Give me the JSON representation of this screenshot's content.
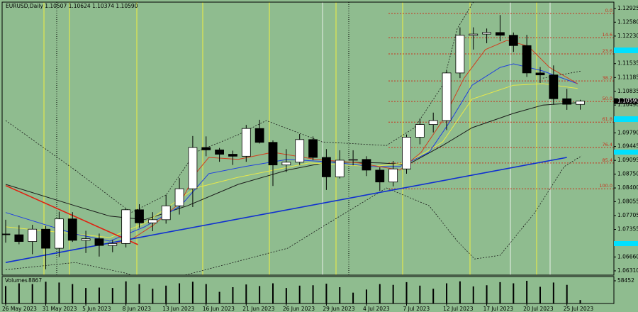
{
  "chart_data": {
    "type": "candlestick",
    "header": "EURUSD,Daily  1.10507 1.10624 1.10374 1.10590",
    "categories": [
      "26 May 2023",
      null,
      null,
      "31 May 2023",
      null,
      null,
      "5 Jun 2023",
      null,
      null,
      "8 Jun 2023",
      null,
      null,
      "13 Jun 2023",
      null,
      null,
      "16 Jun 2023",
      null,
      null,
      "21 Jun 2023",
      null,
      null,
      "26 Jun 2023",
      null,
      null,
      "29 Jun 2023",
      null,
      null,
      "4 Jul 2023",
      null,
      null,
      "7 Jul 2023",
      null,
      null,
      "12 Jul 2023",
      null,
      null,
      "17 Jul 2023",
      null,
      null,
      "20 Jul 2023",
      null,
      null,
      "25 Jul 2023",
      null
    ],
    "open": [
      1.0724,
      1.0722,
      1.0705,
      1.0736,
      1.0688,
      1.0762,
      1.0708,
      1.0712,
      1.0695,
      1.07,
      1.0785,
      1.0752,
      1.076,
      1.0795,
      1.0838,
      1.0942,
      1.0936,
      1.0925,
      1.092,
      1.099,
      1.0955,
      1.0898,
      1.0905,
      1.0962,
      1.0917,
      1.0868,
      1.091,
      1.0912,
      1.0885,
      1.0855,
      1.0888,
      1.0968,
      1.1,
      1.101,
      1.113,
      1.1225,
      1.1228,
      1.1232,
      1.1225,
      1.1199,
      1.113,
      1.1125,
      1.1065,
      1.10507
    ],
    "high": [
      1.076,
      1.0746,
      1.0747,
      1.0744,
      1.078,
      1.0779,
      1.0732,
      1.0725,
      1.0709,
      1.0788,
      1.0799,
      1.0779,
      1.0823,
      1.0865,
      1.0971,
      1.097,
      1.0941,
      1.0934,
      1.0999,
      1.1012,
      1.096,
      1.0938,
      1.0976,
      1.097,
      1.0938,
      1.0935,
      1.0935,
      1.092,
      1.0892,
      1.0908,
      1.0975,
      1.1015,
      1.103,
      1.1136,
      1.1245,
      1.1245,
      1.1242,
      1.1276,
      1.1232,
      1.1226,
      1.1145,
      1.1149,
      1.109,
      1.10624
    ],
    "low": [
      1.0702,
      1.0698,
      1.0673,
      1.0635,
      1.0666,
      1.0704,
      1.0676,
      1.0667,
      1.0678,
      1.069,
      1.074,
      1.0731,
      1.075,
      1.0773,
      1.0792,
      1.092,
      1.0906,
      1.0898,
      1.0906,
      1.0952,
      1.0845,
      1.088,
      1.0898,
      1.091,
      1.0835,
      1.0864,
      1.0897,
      1.087,
      1.0833,
      1.0844,
      1.0876,
      1.095,
      1.098,
      1.0986,
      1.1117,
      1.1189,
      1.1205,
      1.121,
      1.1183,
      1.112,
      1.1105,
      1.105,
      1.1037,
      1.10374
    ],
    "close": [
      1.0722,
      1.0705,
      1.0736,
      1.0688,
      1.0762,
      1.0708,
      1.0712,
      1.0695,
      1.07,
      1.0785,
      1.0752,
      1.076,
      1.0795,
      1.0838,
      1.0942,
      1.0936,
      1.0925,
      1.092,
      1.099,
      1.0955,
      1.0898,
      1.0905,
      1.0962,
      1.0917,
      1.0868,
      1.091,
      1.0912,
      1.0885,
      1.0855,
      1.0888,
      1.0968,
      1.1,
      1.101,
      1.113,
      1.1225,
      1.1228,
      1.1232,
      1.1225,
      1.1199,
      1.113,
      1.1125,
      1.1065,
      1.1051,
      1.1059
    ],
    "up_color": "#ffffff",
    "down_color": "#000000",
    "ylim": [
      1.06202,
      1.13086
    ],
    "yticks": [
      1.12925,
      {
        "value": 1.1258,
        "label": "1.12580"
      },
      {
        "value": 1.1223,
        "label": "1.12230"
      },
      1.11535,
      1.11185,
      1.10835,
      {
        "value": 1.1049,
        "label": "1.10490"
      },
      {
        "value": 1.0979,
        "label": "1.09790"
      },
      1.09445,
      1.09095,
      {
        "value": 1.0875,
        "label": "1.08750"
      },
      {
        "value": 1.084,
        "label": "1.08400"
      },
      1.08055,
      1.07705,
      1.07355,
      {
        "value": 1.0666,
        "label": "1.06660"
      },
      {
        "value": 1.0631,
        "label": "1.06310"
      }
    ],
    "last_price": {
      "value": 1.1059,
      "label": "1.10590"
    },
    "fib_color": "#c8321e",
    "fib_levels": [
      {
        "label": "0.0",
        "value": 1.128
      },
      {
        "label": "14.6",
        "value": 1.1219
      },
      {
        "label": "23.6",
        "value": 1.1178
      },
      {
        "label": "38.2",
        "value": 1.111
      },
      {
        "label": "50.0",
        "value": 1.1058
      },
      {
        "label": "61.8",
        "value": 1.1006
      },
      {
        "label": "76.4",
        "value": 1.0942
      },
      {
        "label": "85.4",
        "value": 1.0903
      },
      {
        "label": "100.0",
        "value": 1.0838
      }
    ],
    "trend_lines": [
      {
        "color": "#1030d0",
        "x": [
          0,
          42
        ],
        "values": [
          1.0652,
          1.0917
        ]
      },
      {
        "color": "#e02010",
        "x": [
          0,
          9.9
        ],
        "values": [
          1.0846,
          1.0697
        ]
      }
    ],
    "indicators": [
      {
        "color": "#1a1a1a",
        "dashed": false,
        "x": [
          0,
          5.2,
          7.8,
          10.4,
          13.6,
          17.4,
          21.1,
          24.2,
          28,
          30.1,
          32.7,
          34.9,
          38,
          40.2,
          42.8
        ],
        "values": [
          1.0849,
          1.0795,
          1.0769,
          1.076,
          1.0795,
          1.0849,
          1.0885,
          1.0906,
          1.0903,
          1.0899,
          1.0947,
          1.0992,
          1.1028,
          1.1049,
          1.1055
        ]
      },
      {
        "color": "#e8e84a",
        "dashed": false,
        "x": [
          0,
          5.2,
          7.8,
          10.4,
          14.2,
          17.4,
          22.7,
          27.4,
          30.1,
          32.7,
          34.9,
          38,
          40.2,
          42.8
        ],
        "values": [
          1.0742,
          1.0724,
          1.0715,
          1.0751,
          1.084,
          1.0867,
          1.0903,
          1.0894,
          1.0903,
          1.0956,
          1.1064,
          1.1099,
          1.1103,
          1.1091
        ]
      },
      {
        "color": "#2040e0",
        "dashed": false,
        "x": [
          0,
          5.2,
          7.8,
          10.4,
          13.1,
          15.2,
          17.9,
          21.1,
          24.2,
          27.4,
          29.5,
          31.7,
          33.3,
          34.9,
          37,
          38,
          40.2,
          42.8
        ],
        "values": [
          1.0778,
          1.0724,
          1.0706,
          1.0742,
          1.0795,
          1.0876,
          1.0894,
          1.0912,
          1.0906,
          1.0894,
          1.0894,
          1.093,
          1.101,
          1.1099,
          1.1144,
          1.1153,
          1.1135,
          1.1103
        ]
      },
      {
        "color": "#d04020",
        "dashed": false,
        "x": [
          7.8,
          9.4,
          11,
          13.1,
          14.2,
          15.2,
          17.4,
          20,
          23.2,
          26.4,
          29.5,
          31.1,
          32.7,
          34.3,
          35.9,
          37.5,
          39.1,
          40.7,
          42.8
        ],
        "values": [
          1.0697,
          1.071,
          1.0745,
          1.0804,
          1.0876,
          1.0917,
          1.0912,
          1.093,
          1.0912,
          1.0903,
          1.0885,
          1.093,
          1.101,
          1.1117,
          1.1189,
          1.1212,
          1.1198,
          1.1144,
          1.1103
        ]
      },
      {
        "color": "#1a1a1a",
        "dashed": true,
        "x": [
          0,
          5.2,
          9.4,
          12,
          14.2,
          17.4,
          19.5,
          23.7,
          28.5,
          30.6,
          32.7,
          33.8,
          35.1
        ],
        "values": [
          1.101,
          1.0885,
          1.0778,
          1.0822,
          1.093,
          1.0974,
          1.101,
          1.0956,
          1.0947,
          1.0992,
          1.1099,
          1.1242,
          1.1314
        ]
      },
      {
        "color": "#1a1a1a",
        "dashed": true,
        "x": [
          0,
          5.2,
          9,
          11,
          21.1,
          23.7,
          28.5,
          31.7,
          33.8,
          35.1,
          37,
          39.6,
          41.8,
          43.1
        ],
        "values": [
          1.0634,
          1.0652,
          1.0625,
          1.0599,
          1.0688,
          1.0742,
          1.084,
          1.0795,
          1.0706,
          1.0661,
          1.067,
          1.0778,
          1.0894,
          1.0921
        ]
      },
      {
        "color": "#1a1a1a",
        "dashed": true,
        "x": [
          40.2,
          43.1
        ],
        "values": [
          1.1117,
          1.1135
        ]
      }
    ],
    "volume": {
      "label": "Volumes",
      "color": "#000000",
      "ylim": [
        0,
        58452
      ],
      "yticks": [
        58452
      ],
      "values": [
        45000,
        52000,
        50000,
        56000,
        54000,
        50000,
        40000,
        41000,
        40000,
        57000,
        50000,
        38000,
        46000,
        52000,
        56000,
        50000,
        30000,
        42000,
        49000,
        45000,
        52000,
        40000,
        46000,
        47000,
        51000,
        42000,
        28000,
        36000,
        50000,
        48000,
        55000,
        46000,
        38000,
        52000,
        57000,
        44000,
        47000,
        55000,
        52000,
        58452,
        43000,
        54000,
        48000,
        8867
      ]
    }
  }
}
